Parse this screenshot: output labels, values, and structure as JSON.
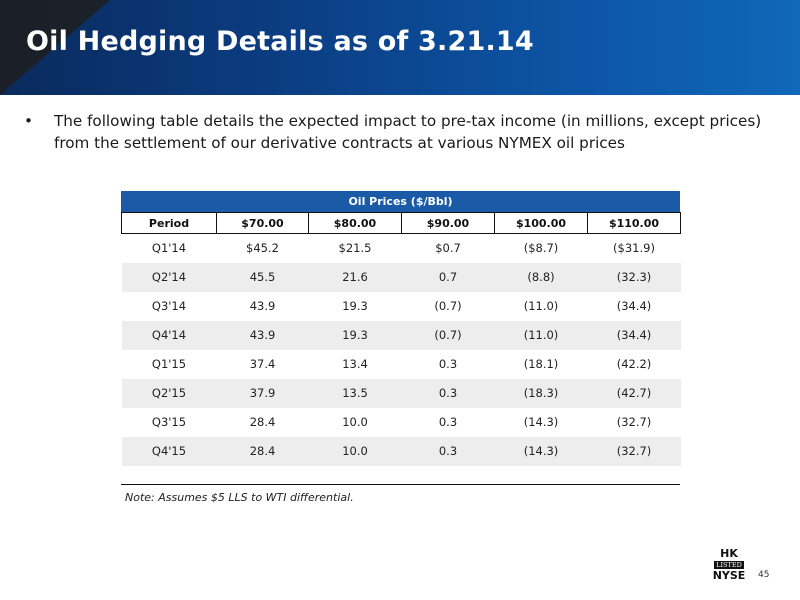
{
  "header": {
    "title": "Oil Hedging Details as of 3.21.14"
  },
  "bullet": {
    "marker": "•",
    "text": "The following table details the expected impact to pre-tax income (in millions, except prices) from the settlement of our derivative contracts at various NYMEX oil prices"
  },
  "table": {
    "band_label": "Oil Prices ($/Bbl)",
    "columns": [
      "Period",
      "$70.00",
      "$80.00",
      "$90.00",
      "$100.00",
      "$110.00"
    ],
    "rows": [
      [
        "Q1'14",
        "$45.2",
        "$21.5",
        "$0.7",
        "($8.7)",
        "($31.9)"
      ],
      [
        "Q2'14",
        "45.5",
        "21.6",
        "0.7",
        "(8.8)",
        "(32.3)"
      ],
      [
        "Q3'14",
        "43.9",
        "19.3",
        "(0.7)",
        "(11.0)",
        "(34.4)"
      ],
      [
        "Q4'14",
        "43.9",
        "19.3",
        "(0.7)",
        "(11.0)",
        "(34.4)"
      ],
      [
        "Q1'15",
        "37.4",
        "13.4",
        "0.3",
        "(18.1)",
        "(42.2)"
      ],
      [
        "Q2'15",
        "37.9",
        "13.5",
        "0.3",
        "(18.3)",
        "(42.7)"
      ],
      [
        "Q3'15",
        "28.4",
        "10.0",
        "0.3",
        "(14.3)",
        "(32.7)"
      ],
      [
        "Q4'15",
        "28.4",
        "10.0",
        "0.3",
        "(14.3)",
        "(32.7)"
      ]
    ],
    "note": "Note: Assumes $5 LLS to WTI differential."
  },
  "footer": {
    "logo_top": "HK",
    "logo_middle": "LISTED",
    "logo_bottom": "NYSE",
    "page_number": "45"
  },
  "colors": {
    "header_blue": "#0d57a8",
    "band_blue": "#1a5aa6",
    "stripe_gray": "#ededed"
  }
}
